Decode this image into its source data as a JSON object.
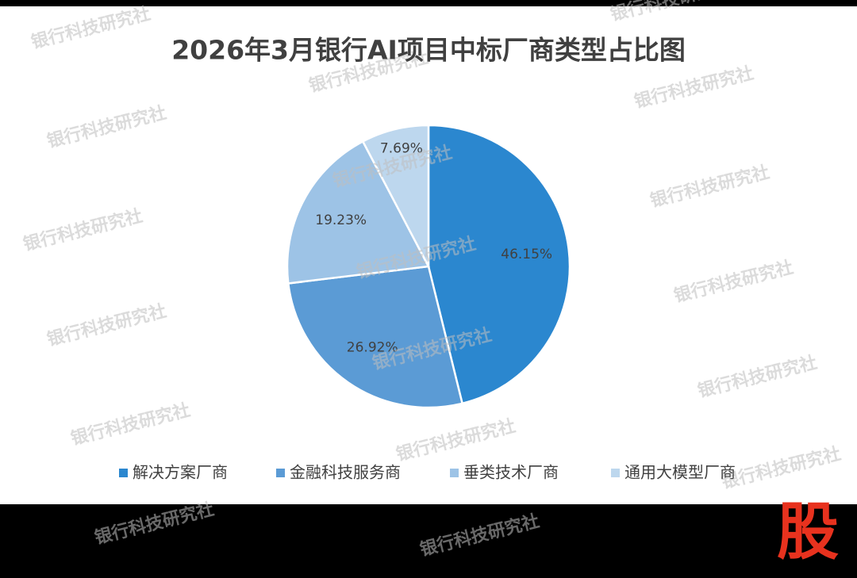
{
  "chart_data": {
    "type": "pie",
    "title": "2026年3月银行AI项目中标厂商类型占比图",
    "categories": [
      "解决方案厂商",
      "金融科技服务商",
      "垂类技术厂商",
      "通用大模型厂商"
    ],
    "values": [
      46.15,
      26.92,
      19.23,
      7.69
    ],
    "value_labels": [
      "46.15%",
      "26.92%",
      "19.23%",
      "7.69%"
    ],
    "colors": [
      "#2b87cf",
      "#5b9bd5",
      "#9dc3e6",
      "#bdd7ee"
    ],
    "legend": "bottom"
  },
  "watermark": "银行科技研究社",
  "logo": "股"
}
